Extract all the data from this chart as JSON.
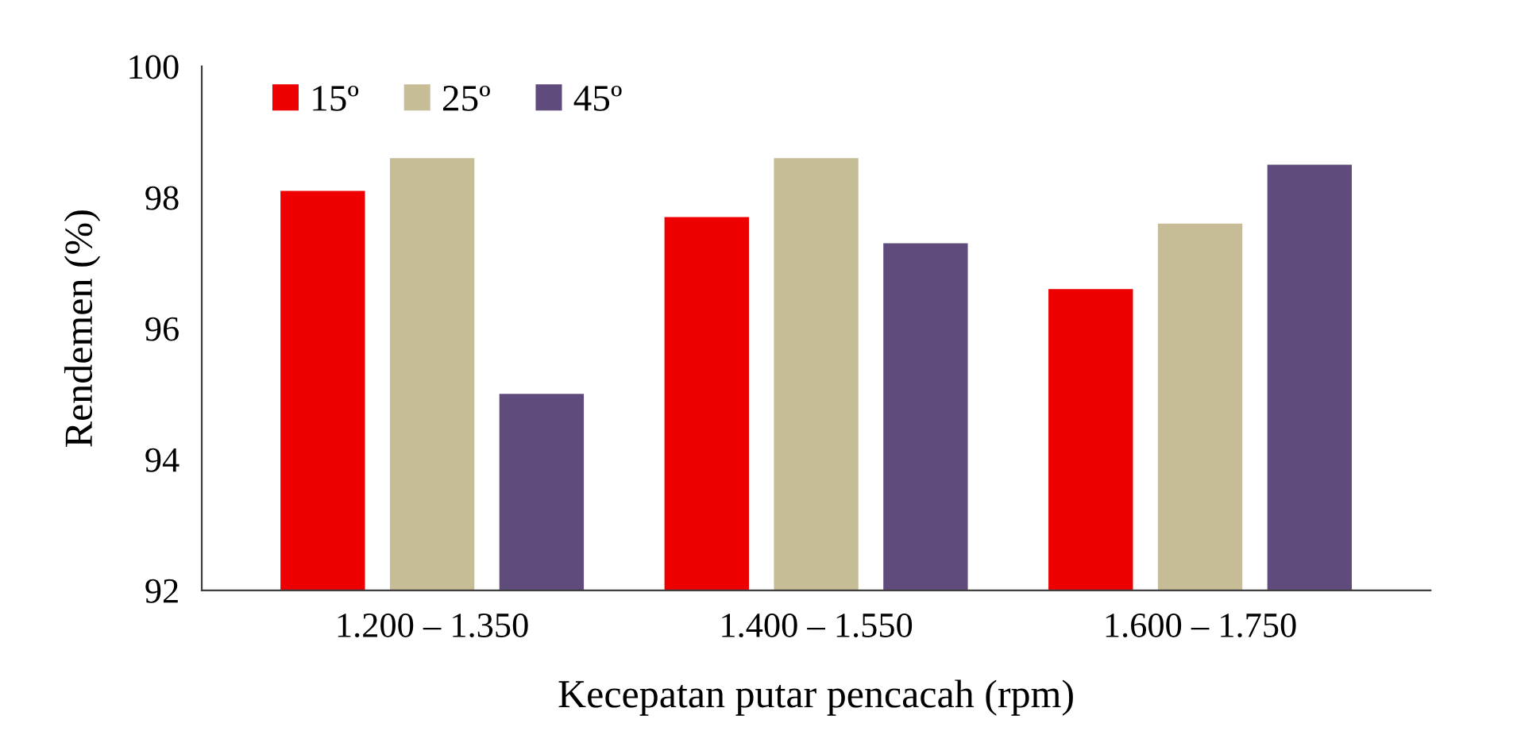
{
  "chart_data": {
    "type": "bar",
    "xlabel": "Kecepatan putar pencacah (rpm)",
    "ylabel": "Rendemen (%)",
    "categories": [
      "1.200 – 1.350",
      "1.400 – 1.550",
      "1.600 – 1.750"
    ],
    "series": [
      {
        "name": "15º",
        "color": "#ee0000",
        "values": [
          98.1,
          97.7,
          96.6
        ]
      },
      {
        "name": "25º",
        "color": "#c6bd97",
        "values": [
          98.6,
          98.6,
          97.6
        ]
      },
      {
        "name": "45º",
        "color": "#604c7c",
        "values": [
          95.0,
          97.3,
          98.5
        ]
      }
    ],
    "ylim": [
      92,
      100
    ],
    "yticks": [
      92,
      94,
      96,
      98,
      100
    ],
    "grid": false,
    "legend": "top left"
  }
}
